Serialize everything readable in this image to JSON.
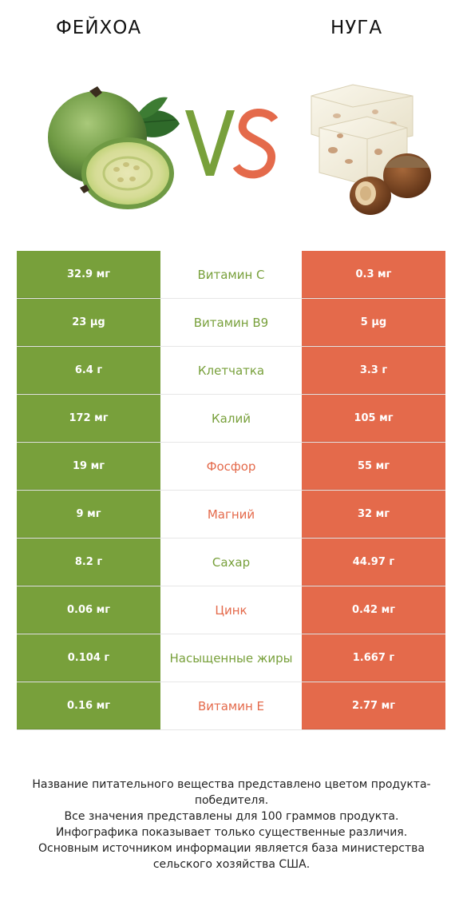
{
  "header": {
    "left": "ФЕЙХОА",
    "right": "НУГА"
  },
  "colors": {
    "left_accent": "#78a03b",
    "right_accent": "#e46a4b"
  },
  "rows": [
    {
      "left": "32.9 мг",
      "label": "Витамин C",
      "right": "0.3 мг",
      "winner": "left"
    },
    {
      "left": "23 µg",
      "label": "Витамин B9",
      "right": "5 µg",
      "winner": "left"
    },
    {
      "left": "6.4 г",
      "label": "Клетчатка",
      "right": "3.3 г",
      "winner": "left"
    },
    {
      "left": "172 мг",
      "label": "Калий",
      "right": "105 мг",
      "winner": "left"
    },
    {
      "left": "19 мг",
      "label": "Фосфор",
      "right": "55 мг",
      "winner": "right"
    },
    {
      "left": "9 мг",
      "label": "Магний",
      "right": "32 мг",
      "winner": "right"
    },
    {
      "left": "8.2 г",
      "label": "Сахар",
      "right": "44.97 г",
      "winner": "left"
    },
    {
      "left": "0.06 мг",
      "label": "Цинк",
      "right": "0.42 мг",
      "winner": "right"
    },
    {
      "left": "0.104 г",
      "label": "Насыщенные жиры",
      "right": "1.667 г",
      "winner": "left"
    },
    {
      "left": "0.16 мг",
      "label": "Витамин E",
      "right": "2.77 мг",
      "winner": "right"
    }
  ],
  "footnote": [
    "Название питательного вещества представлено цветом продукта-победителя.",
    "Все значения представлены для 100 граммов продукта.",
    "Инфографика показывает только существенные различия.",
    "Основным источником информации является база министерства сельского хозяйства США."
  ]
}
